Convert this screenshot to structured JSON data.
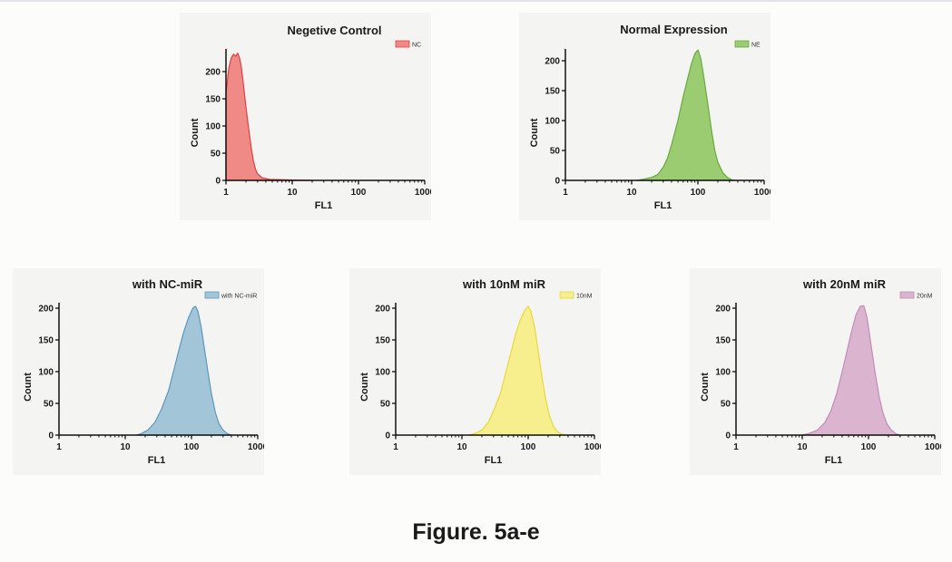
{
  "figure": {
    "caption": "Figure. 5a-e"
  },
  "chart_data": [
    {
      "id": "a",
      "type": "area",
      "title": "Negetive Control",
      "xlabel": "FL1",
      "ylabel": "Count",
      "xscale": "log",
      "xlim": [
        1,
        1000
      ],
      "ylim": [
        0,
        240
      ],
      "xticks": [
        "1",
        "10",
        "100",
        "1000"
      ],
      "yticks": [
        "0",
        "50",
        "100",
        "150",
        "200"
      ],
      "legend": {
        "label": "NC",
        "position": "top-right"
      },
      "color": "#e04040",
      "fill": "#ef8a86",
      "distribution": {
        "peak_fl1": 1.45,
        "peak_count": 230,
        "log_sd_left": 0.12,
        "log_sd_right": 0.13,
        "start_fl1": 1,
        "start_count": 160
      },
      "points": [
        [
          1,
          160
        ],
        [
          1.1,
          205
        ],
        [
          1.2,
          225
        ],
        [
          1.3,
          232
        ],
        [
          1.4,
          228
        ],
        [
          1.5,
          234
        ],
        [
          1.6,
          225
        ],
        [
          1.7,
          210
        ],
        [
          1.8,
          185
        ],
        [
          1.9,
          160
        ],
        [
          2.0,
          135
        ],
        [
          2.2,
          95
        ],
        [
          2.4,
          60
        ],
        [
          2.6,
          35
        ],
        [
          2.8,
          20
        ],
        [
          3.0,
          12
        ],
        [
          3.5,
          5
        ],
        [
          4.5,
          2
        ],
        [
          6,
          1.5
        ],
        [
          8,
          1
        ],
        [
          12,
          0.5
        ],
        [
          20,
          0
        ]
      ]
    },
    {
      "id": "b",
      "type": "area",
      "title": "Normal Expression",
      "xlabel": "FL1",
      "ylabel": "Count",
      "xscale": "log",
      "xlim": [
        1,
        1000
      ],
      "ylim": [
        0,
        220
      ],
      "xticks": [
        "1",
        "10",
        "100",
        "1000"
      ],
      "yticks": [
        "0",
        "50",
        "100",
        "150",
        "200"
      ],
      "legend": {
        "label": "NE",
        "position": "top-right"
      },
      "color": "#6aaa3c",
      "fill": "#9ccc72",
      "points": [
        [
          12,
          0
        ],
        [
          15,
          2
        ],
        [
          20,
          5
        ],
        [
          25,
          10
        ],
        [
          30,
          22
        ],
        [
          35,
          38
        ],
        [
          40,
          60
        ],
        [
          50,
          100
        ],
        [
          60,
          140
        ],
        [
          70,
          170
        ],
        [
          80,
          195
        ],
        [
          90,
          212
        ],
        [
          100,
          218
        ],
        [
          110,
          205
        ],
        [
          120,
          180
        ],
        [
          140,
          130
        ],
        [
          160,
          85
        ],
        [
          180,
          50
        ],
        [
          200,
          30
        ],
        [
          240,
          12
        ],
        [
          280,
          5
        ],
        [
          320,
          1
        ],
        [
          360,
          0
        ]
      ]
    },
    {
      "id": "c",
      "type": "area",
      "title": "with NC-miR",
      "xlabel": "FL1",
      "ylabel": "Count",
      "xscale": "log",
      "xlim": [
        1,
        1000
      ],
      "ylim": [
        0,
        210
      ],
      "xticks": [
        "1",
        "10",
        "100",
        "1000"
      ],
      "yticks": [
        "0",
        "50",
        "100",
        "150",
        "200"
      ],
      "legend": {
        "label": "with NC-miR",
        "position": "top-right"
      },
      "color": "#5b98bf",
      "fill": "#a2c6d8",
      "points": [
        [
          15,
          0
        ],
        [
          18,
          3
        ],
        [
          22,
          8
        ],
        [
          28,
          20
        ],
        [
          35,
          40
        ],
        [
          45,
          70
        ],
        [
          55,
          105
        ],
        [
          65,
          135
        ],
        [
          75,
          160
        ],
        [
          90,
          185
        ],
        [
          105,
          200
        ],
        [
          115,
          203
        ],
        [
          125,
          195
        ],
        [
          140,
          170
        ],
        [
          160,
          130
        ],
        [
          180,
          95
        ],
        [
          200,
          65
        ],
        [
          230,
          35
        ],
        [
          260,
          18
        ],
        [
          300,
          8
        ],
        [
          350,
          2
        ],
        [
          400,
          0
        ]
      ]
    },
    {
      "id": "d",
      "type": "area",
      "title": "with 10nM miR",
      "xlabel": "FL1",
      "ylabel": "Count",
      "xscale": "log",
      "xlim": [
        1,
        1000
      ],
      "ylim": [
        0,
        210
      ],
      "xticks": [
        "1",
        "10",
        "100",
        "1000"
      ],
      "yticks": [
        "0",
        "50",
        "100",
        "150",
        "200"
      ],
      "legend": {
        "label": "10nM",
        "position": "top-right"
      },
      "color": "#e8d93a",
      "fill": "#f7ef8e",
      "points": [
        [
          13,
          0
        ],
        [
          16,
          3
        ],
        [
          20,
          8
        ],
        [
          25,
          20
        ],
        [
          30,
          38
        ],
        [
          38,
          65
        ],
        [
          45,
          95
        ],
        [
          55,
          130
        ],
        [
          65,
          160
        ],
        [
          75,
          180
        ],
        [
          90,
          198
        ],
        [
          100,
          203
        ],
        [
          110,
          195
        ],
        [
          125,
          170
        ],
        [
          145,
          125
        ],
        [
          165,
          85
        ],
        [
          185,
          55
        ],
        [
          210,
          30
        ],
        [
          240,
          14
        ],
        [
          280,
          5
        ],
        [
          330,
          1
        ],
        [
          370,
          0
        ]
      ]
    },
    {
      "id": "e",
      "type": "area",
      "title": "with 20nM miR",
      "xlabel": "FL1",
      "ylabel": "Count",
      "xscale": "log",
      "xlim": [
        1,
        1000
      ],
      "ylim": [
        0,
        210
      ],
      "xticks": [
        "1",
        "10",
        "100",
        "1000"
      ],
      "yticks": [
        "0",
        "50",
        "100",
        "150",
        "200"
      ],
      "legend": {
        "label": "20nM",
        "position": "top-right"
      },
      "color": "#c48cb3",
      "fill": "#dbb4cf",
      "points": [
        [
          10,
          0
        ],
        [
          13,
          3
        ],
        [
          17,
          8
        ],
        [
          22,
          20
        ],
        [
          27,
          38
        ],
        [
          33,
          65
        ],
        [
          40,
          100
        ],
        [
          48,
          135
        ],
        [
          56,
          165
        ],
        [
          65,
          190
        ],
        [
          75,
          203
        ],
        [
          85,
          204
        ],
        [
          95,
          185
        ],
        [
          110,
          140
        ],
        [
          125,
          100
        ],
        [
          145,
          60
        ],
        [
          165,
          35
        ],
        [
          190,
          18
        ],
        [
          220,
          8
        ],
        [
          260,
          2
        ],
        [
          300,
          0
        ]
      ]
    }
  ]
}
